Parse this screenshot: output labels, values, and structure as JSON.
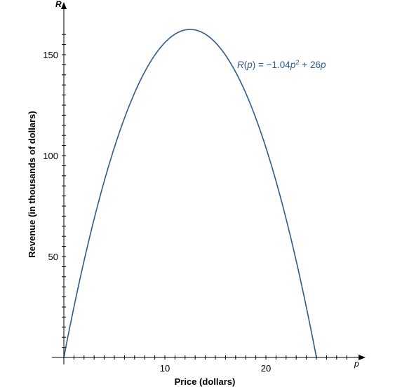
{
  "chart_data": {
    "type": "line",
    "xlabel": "Price (dollars)",
    "ylabel": "Revenue (in thousands of dollars)",
    "x_var": "p",
    "y_var": "R",
    "xlim": [
      0,
      29
    ],
    "ylim": [
      0,
      165
    ],
    "x_ticks": [
      {
        "value": 1
      },
      {
        "value": 2
      },
      {
        "value": 3
      },
      {
        "value": 4
      },
      {
        "value": 5
      },
      {
        "value": 6
      },
      {
        "value": 7
      },
      {
        "value": 8
      },
      {
        "value": 9
      },
      {
        "value": 10,
        "label": "10"
      },
      {
        "value": 11
      },
      {
        "value": 12
      },
      {
        "value": 13
      },
      {
        "value": 14
      },
      {
        "value": 15
      },
      {
        "value": 16
      },
      {
        "value": 17
      },
      {
        "value": 18
      },
      {
        "value": 19
      },
      {
        "value": 20,
        "label": "20"
      },
      {
        "value": 21
      },
      {
        "value": 22
      },
      {
        "value": 23
      },
      {
        "value": 24
      },
      {
        "value": 25
      },
      {
        "value": 26
      },
      {
        "value": 27
      },
      {
        "value": 28
      }
    ],
    "y_ticks": [
      {
        "value": 5
      },
      {
        "value": 10
      },
      {
        "value": 15
      },
      {
        "value": 20
      },
      {
        "value": 25
      },
      {
        "value": 30
      },
      {
        "value": 35
      },
      {
        "value": 40
      },
      {
        "value": 45
      },
      {
        "value": 50,
        "label": "50"
      },
      {
        "value": 55
      },
      {
        "value": 60
      },
      {
        "value": 65
      },
      {
        "value": 70
      },
      {
        "value": 75
      },
      {
        "value": 80
      },
      {
        "value": 85
      },
      {
        "value": 90
      },
      {
        "value": 95
      },
      {
        "value": 100,
        "label": "100"
      },
      {
        "value": 105
      },
      {
        "value": 110
      },
      {
        "value": 115
      },
      {
        "value": 120
      },
      {
        "value": 125
      },
      {
        "value": 130
      },
      {
        "value": 135
      },
      {
        "value": 140
      },
      {
        "value": 145
      },
      {
        "value": 150,
        "label": "150"
      },
      {
        "value": 155
      },
      {
        "value": 160
      }
    ],
    "series": [
      {
        "label": {
          "fn": "R",
          "open": "(",
          "arg": "p",
          "close": ")",
          "rhs_prefix": " = −1.04",
          "var": "p",
          "exp": "2",
          "rhs_suffix": " + 26",
          "var2": "p"
        },
        "equation": {
          "a": -1.04,
          "b": 26,
          "c": 0
        },
        "domain": [
          0,
          25
        ],
        "points": [
          {
            "x": 0,
            "y": 0
          },
          {
            "x": 2.5,
            "y": 58.5
          },
          {
            "x": 5,
            "y": 104
          },
          {
            "x": 7.5,
            "y": 136.5
          },
          {
            "x": 10,
            "y": 156
          },
          {
            "x": 12.5,
            "y": 162.5
          },
          {
            "x": 15,
            "y": 156
          },
          {
            "x": 17.5,
            "y": 136.5
          },
          {
            "x": 20,
            "y": 104
          },
          {
            "x": 22.5,
            "y": 58.5
          },
          {
            "x": 25,
            "y": 0
          }
        ],
        "color": "#2e5a8c"
      }
    ],
    "grid": false,
    "axis_color": "#000000"
  }
}
